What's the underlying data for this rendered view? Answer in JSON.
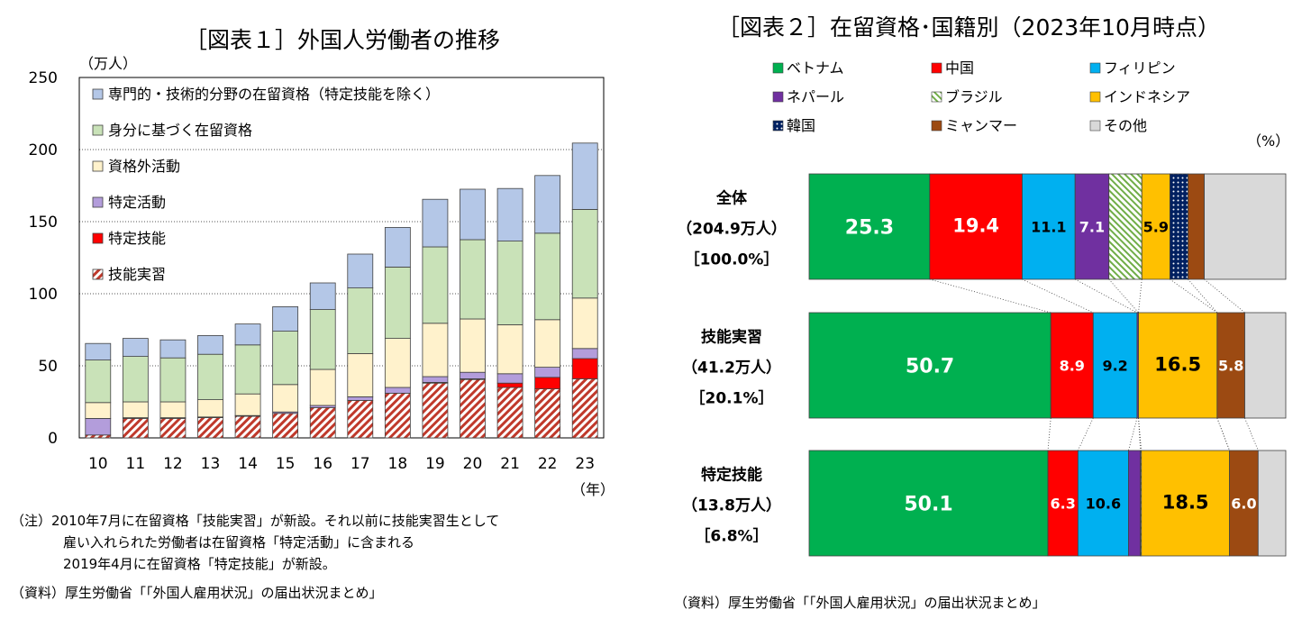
{
  "chart_data": [
    {
      "type": "bar",
      "stacked": true,
      "title": "［図表１］外国人労働者の推移",
      "unit_label": "（万人）",
      "x_unit_label": "（年）",
      "ylim": [
        0,
        250
      ],
      "y_ticks": [
        "0",
        "50",
        "100",
        "150",
        "200",
        "250"
      ],
      "categories": [
        "10",
        "11",
        "12",
        "13",
        "14",
        "15",
        "16",
        "17",
        "18",
        "19",
        "20",
        "21",
        "22",
        "23"
      ],
      "series": [
        {
          "name": "技能実習",
          "color": "#c0392b",
          "pattern": "hatch",
          "values": [
            2,
            13.5,
            13.5,
            14,
            15,
            17,
            21,
            26,
            31,
            38,
            40.5,
            35,
            34,
            41
          ]
        },
        {
          "name": "特定技能",
          "color": "#ff0000",
          "values": [
            0,
            0,
            0,
            0,
            0,
            0,
            0,
            0,
            0,
            0.5,
            0.5,
            3,
            8,
            14
          ]
        },
        {
          "name": "特定活動",
          "color": "#b39ddb",
          "values": [
            11.5,
            0.5,
            0.5,
            0.5,
            0.5,
            1,
            1.5,
            2.5,
            4,
            4,
            4.5,
            6.5,
            7,
            7
          ]
        },
        {
          "name": "資格外活動",
          "color": "#fff2cc",
          "values": [
            11,
            11,
            11,
            12,
            15,
            19,
            25,
            30,
            34,
            37,
            37,
            34,
            33,
            35
          ]
        },
        {
          "name": "身分に基づく在留資格",
          "color": "#c9e2b8",
          "values": [
            29.5,
            31.5,
            30.5,
            31.5,
            34,
            37,
            41.5,
            45.5,
            49.5,
            53,
            55,
            58,
            60,
            61.5
          ]
        },
        {
          "name": "専門的・技術的分野の在留資格（特定技能を除く）",
          "color": "#b4c7e7",
          "values": [
            11.5,
            12.5,
            12.5,
            13,
            14.5,
            17,
            18.5,
            23.5,
            27.5,
            33,
            35,
            36.5,
            40,
            46
          ]
        }
      ],
      "notes": [
        "（注）2010年7月に在留資格「技能実習」が新設。それ以前に技能実習生として",
        "雇い入れられた労働者は在留資格「特定活動」に含まれる",
        "2019年4月に在留資格「特定技能」が新設。"
      ],
      "source": "（資料）厚生労働省「「外国人雇用状況」の届出状況まとめ」"
    },
    {
      "type": "bar",
      "orientation": "horizontal",
      "stacked": true,
      "percent": true,
      "title": "［図表２］在留資格･国籍別（2023年10月時点）",
      "unit_label": "（%）",
      "legend": [
        {
          "name": "ベトナム",
          "color": "#00b050"
        },
        {
          "name": "中国",
          "color": "#ff0000"
        },
        {
          "name": "フィリピン",
          "color": "#00b0f0"
        },
        {
          "name": "ネパール",
          "color": "#7030a0"
        },
        {
          "name": "ブラジル",
          "color": "#a9d18e",
          "pattern": "diag"
        },
        {
          "name": "インドネシア",
          "color": "#ffc000"
        },
        {
          "name": "韓国",
          "color": "#002060",
          "pattern": "dots"
        },
        {
          "name": "ミャンマー",
          "color": "#9c4a12"
        },
        {
          "name": "その他",
          "color": "#d9d9d9"
        }
      ],
      "rows": [
        {
          "name": "全体",
          "total": "（204.9万人）",
          "share": "［100.0%］",
          "values": [
            25.3,
            19.4,
            11.1,
            7.1,
            6.9,
            5.9,
            3.8,
            3.4,
            17.1
          ],
          "labels": [
            "25.3",
            "19.4",
            "11.1",
            "7.1",
            "",
            "5.9",
            "",
            "",
            ""
          ]
        },
        {
          "name": "技能実習",
          "total": "（41.2万人）",
          "share": "［20.1%］",
          "values": [
            50.7,
            8.9,
            9.2,
            0.3,
            0.0,
            16.5,
            0.0,
            5.8,
            8.6
          ],
          "labels": [
            "50.7",
            "8.9",
            "9.2",
            "",
            "",
            "16.5",
            "",
            "5.8",
            ""
          ]
        },
        {
          "name": "特定技能",
          "total": "（13.8万人）",
          "share": "［6.8%］",
          "values": [
            50.1,
            6.3,
            10.6,
            2.5,
            0.2,
            18.5,
            0.0,
            6.0,
            5.8
          ],
          "labels": [
            "50.1",
            "6.3",
            "10.6",
            "",
            "",
            "18.5",
            "",
            "6.0",
            ""
          ]
        }
      ],
      "source": "（資料）厚生労働省「「外国人雇用状況」の届出状況まとめ」"
    }
  ]
}
